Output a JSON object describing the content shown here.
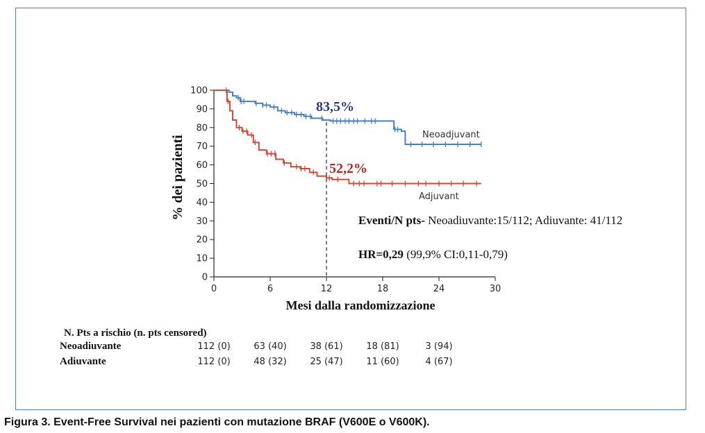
{
  "figure": {
    "caption": "Figura 3. Event-Free Survival nei pazienti con mutazione BRAF (V600E o V600K)."
  },
  "chart_data": {
    "type": "line",
    "title": "",
    "xlabel": "Mesi dalla randomizzazione",
    "ylabel": "% dei pazienti",
    "xlim": [
      0,
      30
    ],
    "ylim": [
      0,
      100
    ],
    "x_ticks": [
      0,
      6,
      12,
      18,
      24,
      30
    ],
    "y_ticks": [
      0,
      10,
      20,
      30,
      40,
      50,
      60,
      70,
      80,
      90,
      100
    ],
    "grid": false,
    "reference_line_x": 12,
    "series": [
      {
        "name": "Neoadjuvant",
        "color": "#4a7fc1",
        "step": [
          [
            0,
            100
          ],
          [
            1.2,
            100
          ],
          [
            1.6,
            99
          ],
          [
            2,
            97
          ],
          [
            2.4,
            96
          ],
          [
            2.8,
            94
          ],
          [
            3.6,
            94
          ],
          [
            4.4,
            93
          ],
          [
            5.2,
            92
          ],
          [
            6,
            91
          ],
          [
            6.8,
            89
          ],
          [
            7.6,
            88
          ],
          [
            8.6,
            87
          ],
          [
            9.6,
            86
          ],
          [
            10.4,
            85
          ],
          [
            11.6,
            84
          ],
          [
            12.4,
            83.5
          ],
          [
            19,
            83.5
          ],
          [
            19.2,
            79
          ],
          [
            20,
            78
          ],
          [
            20.4,
            71
          ],
          [
            28.5,
            71
          ]
        ],
        "censor": [
          1.3,
          2.6,
          2.9,
          3.2,
          4.5,
          5.2,
          5.6,
          6.4,
          7.2,
          7.8,
          8.3,
          8.8,
          9.3,
          9.8,
          10.3,
          11.5,
          12.7,
          13.1,
          13.5,
          14,
          14.4,
          14.9,
          15.3,
          16.1,
          16.8,
          17.2,
          19.3,
          19.6,
          21,
          22.2,
          23.4,
          24.7,
          26,
          27.3,
          28.5
        ],
        "value_at_12": "83,5%"
      },
      {
        "name": "Adjuvant",
        "color": "#cf4a37",
        "step": [
          [
            0,
            100
          ],
          [
            1.2,
            100
          ],
          [
            1.4,
            94
          ],
          [
            1.7,
            89
          ],
          [
            2,
            84
          ],
          [
            2.4,
            80
          ],
          [
            3,
            78
          ],
          [
            3.6,
            76
          ],
          [
            4.2,
            72
          ],
          [
            4.8,
            68
          ],
          [
            5.6,
            66
          ],
          [
            6.6,
            63
          ],
          [
            7.4,
            61
          ],
          [
            8.2,
            59
          ],
          [
            9.2,
            58
          ],
          [
            10.2,
            56
          ],
          [
            11,
            54
          ],
          [
            12,
            53
          ],
          [
            12.6,
            52.2
          ],
          [
            14.2,
            52.2
          ],
          [
            14.4,
            50
          ],
          [
            28.5,
            50
          ]
        ],
        "censor": [
          1.5,
          2.7,
          3.1,
          3.5,
          4,
          4.4,
          5.7,
          6.1,
          6.5,
          7.5,
          8.8,
          9.3,
          9.7,
          10.6,
          12.3,
          13.2,
          14.9,
          15.5,
          16,
          17.4,
          17.8,
          19,
          20.4,
          21.8,
          22.6,
          24,
          25.3,
          26.6,
          28
        ],
        "value_at_12": "52,2%"
      }
    ],
    "annotations": {
      "eventi_bold": "Eventi/N pts-",
      "eventi_rest": " Neoadiuvante:15/112; Adiuvante: 41/112",
      "hr_bold": "HR=0,29",
      "hr_rest": " (99,9% CI:0,11-0,79)"
    },
    "risk_table": {
      "title": "N. Pts a rischio (n. pts censored)",
      "rows": [
        {
          "name": "Neoadiuvante",
          "values": [
            "112 (0)",
            "63 (40)",
            "38 (61)",
            "18 (81)",
            "3 (94)"
          ]
        },
        {
          "name": "Adiuvante",
          "values": [
            "112 (0)",
            "48 (32)",
            "25 (47)",
            "11 (60)",
            "4 (67)"
          ]
        }
      ]
    }
  }
}
